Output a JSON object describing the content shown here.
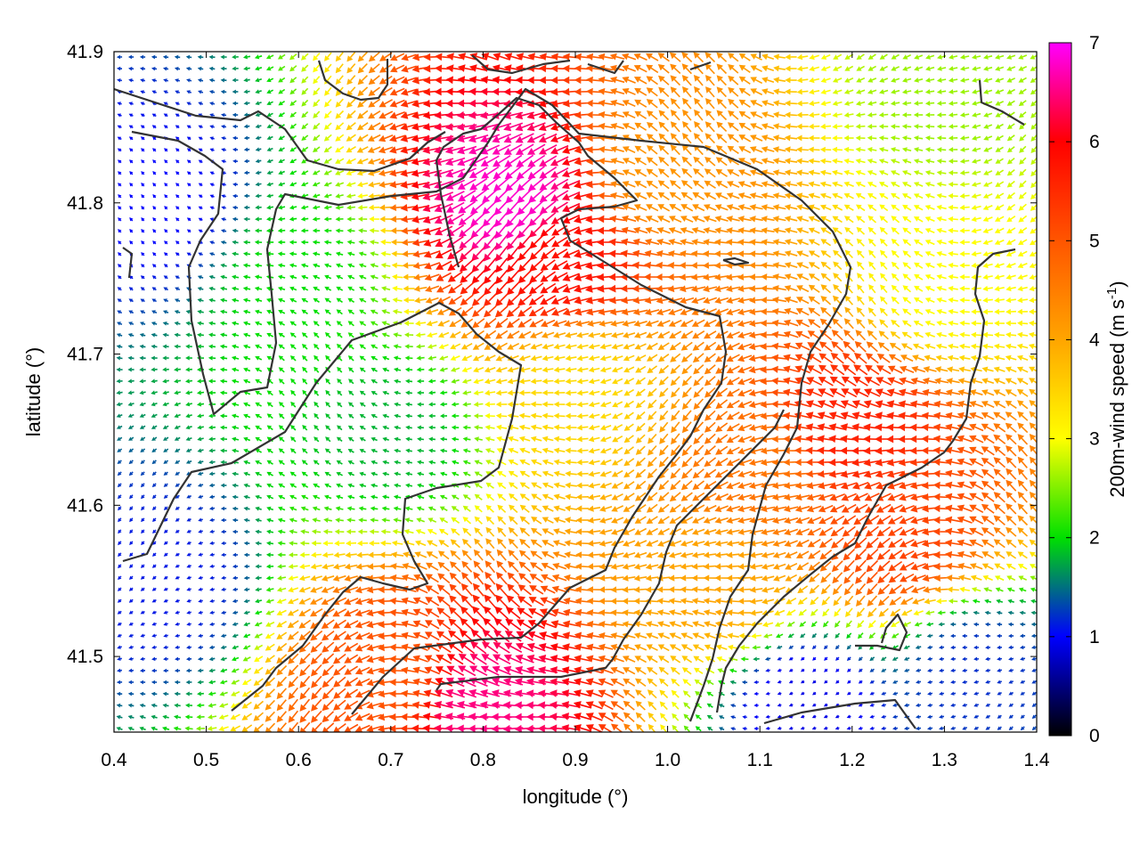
{
  "chart_data": {
    "type": "heatmap",
    "subtype": "wind-vector-field",
    "title": "",
    "xlabel": "longitude (°)",
    "ylabel": "latitude (°)",
    "xlim": [
      0.4,
      1.4
    ],
    "ylim": [
      41.45,
      41.9
    ],
    "x_ticks": [
      "0.4",
      "0.5",
      "0.6",
      "0.7",
      "0.8",
      "0.9",
      "1.0",
      "1.1",
      "1.2",
      "1.3",
      "1.4"
    ],
    "y_ticks": [
      "41.5",
      "41.6",
      "41.7",
      "41.8",
      "41.9"
    ],
    "grid": false,
    "colorbar": {
      "label_main": "200m-wind speed (m s",
      "label_exp": "-1",
      "label_close": ")",
      "range": [
        0,
        7
      ],
      "ticks": [
        "0",
        "1",
        "2",
        "3",
        "4",
        "5",
        "6",
        "7"
      ],
      "stops": [
        {
          "value": 0.0,
          "color": "#000000"
        },
        {
          "value": 1.0,
          "color": "#0000ff"
        },
        {
          "value": 2.0,
          "color": "#00e000"
        },
        {
          "value": 3.0,
          "color": "#ffff00"
        },
        {
          "value": 4.0,
          "color": "#ffa500"
        },
        {
          "value": 5.0,
          "color": "#ff5500"
        },
        {
          "value": 6.0,
          "color": "#ff0000"
        },
        {
          "value": 7.0,
          "color": "#ff00ff"
        }
      ]
    },
    "wind_field_regions": [
      {
        "lon": 0.45,
        "lat": 41.8,
        "speed": 1.0
      },
      {
        "lon": 0.6,
        "lat": 41.75,
        "speed": 2.0
      },
      {
        "lon": 0.7,
        "lat": 41.65,
        "speed": 1.8
      },
      {
        "lon": 0.45,
        "lat": 41.55,
        "speed": 1.1
      },
      {
        "lon": 0.83,
        "lat": 41.8,
        "speed": 6.8
      },
      {
        "lon": 0.88,
        "lat": 41.76,
        "speed": 5.8
      },
      {
        "lon": 1.0,
        "lat": 41.82,
        "speed": 4.2
      },
      {
        "lon": 0.9,
        "lat": 41.68,
        "speed": 3.4
      },
      {
        "lon": 1.2,
        "lat": 41.65,
        "speed": 5.6
      },
      {
        "lon": 1.25,
        "lat": 41.58,
        "speed": 5.2
      },
      {
        "lon": 1.05,
        "lat": 41.55,
        "speed": 4.0
      },
      {
        "lon": 1.3,
        "lat": 41.75,
        "speed": 3.0
      },
      {
        "lon": 1.3,
        "lat": 41.87,
        "speed": 2.6
      },
      {
        "lon": 0.8,
        "lat": 41.47,
        "speed": 6.5
      },
      {
        "lon": 0.7,
        "lat": 41.49,
        "speed": 5.0
      },
      {
        "lon": 1.15,
        "lat": 41.47,
        "speed": 0.9
      },
      {
        "lon": 1.33,
        "lat": 41.49,
        "speed": 1.2
      },
      {
        "lon": 1.1,
        "lat": 41.62,
        "speed": 4.6
      }
    ]
  }
}
